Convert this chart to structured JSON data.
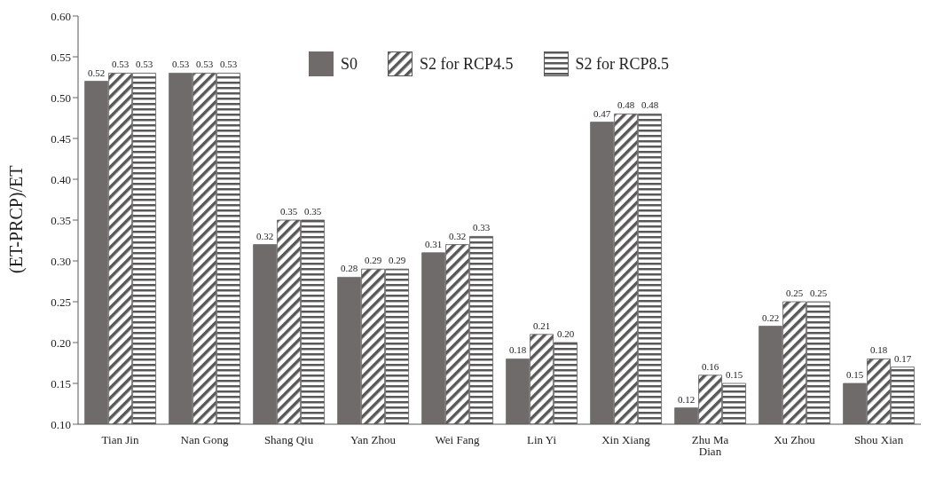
{
  "chart_data": {
    "type": "bar",
    "ylabel": "(ET-PRCP)/ET",
    "categories": [
      "Tian Jin",
      "Nan Gong",
      "Shang Qiu",
      "Yan Zhou",
      "Wei Fang",
      "Lin Yi",
      "Xin Xiang",
      "Zhu Ma Dian",
      "Xu Zhou",
      "Shou Xian"
    ],
    "series": [
      {
        "name": "S0",
        "color": "#6f6b6b",
        "values": [
          0.52,
          0.53,
          0.32,
          0.28,
          0.31,
          0.18,
          0.47,
          0.12,
          0.22,
          0.15
        ],
        "value_labels": [
          "0.52",
          "0.53",
          "0.32",
          "0.28",
          "0.31",
          "0.18",
          "0.47",
          "0.12",
          "0.22",
          "0.15"
        ]
      },
      {
        "name": "S2 for RCP4.5",
        "color": "#5a5757",
        "values": [
          0.53,
          0.53,
          0.35,
          0.29,
          0.32,
          0.21,
          0.48,
          0.16,
          0.25,
          0.18
        ],
        "value_labels": [
          "0.53",
          "0.53",
          "0.35",
          "0.29",
          "0.32",
          "0.21",
          "0.48",
          "0.16",
          "0.25",
          "0.18"
        ]
      },
      {
        "name": "S2 for RCP8.5",
        "color": "#5a5757",
        "values": [
          0.53,
          0.53,
          0.35,
          0.29,
          0.33,
          0.2,
          0.48,
          0.15,
          0.25,
          0.17
        ],
        "value_labels": [
          "0.53",
          "0.53",
          "0.35",
          "0.29",
          "0.33",
          "0.20",
          "0.48",
          "0.15",
          "0.25",
          "0.17"
        ]
      }
    ],
    "ylim": [
      0.1,
      0.6
    ],
    "yticks": [
      {
        "value": 0.1,
        "label": "0.10"
      },
      {
        "value": 0.15,
        "label": "0.15"
      },
      {
        "value": 0.2,
        "label": "0.20"
      },
      {
        "value": 0.25,
        "label": "0.25"
      },
      {
        "value": 0.3,
        "label": "0.30"
      },
      {
        "value": 0.35,
        "label": "0.35"
      },
      {
        "value": 0.4,
        "label": "0.40"
      },
      {
        "value": 0.45,
        "label": "0.45"
      },
      {
        "value": 0.5,
        "label": "0.50"
      },
      {
        "value": 0.55,
        "label": "0.55"
      },
      {
        "value": 0.6,
        "label": "0.60"
      }
    ],
    "grid": false,
    "legend": "top"
  }
}
